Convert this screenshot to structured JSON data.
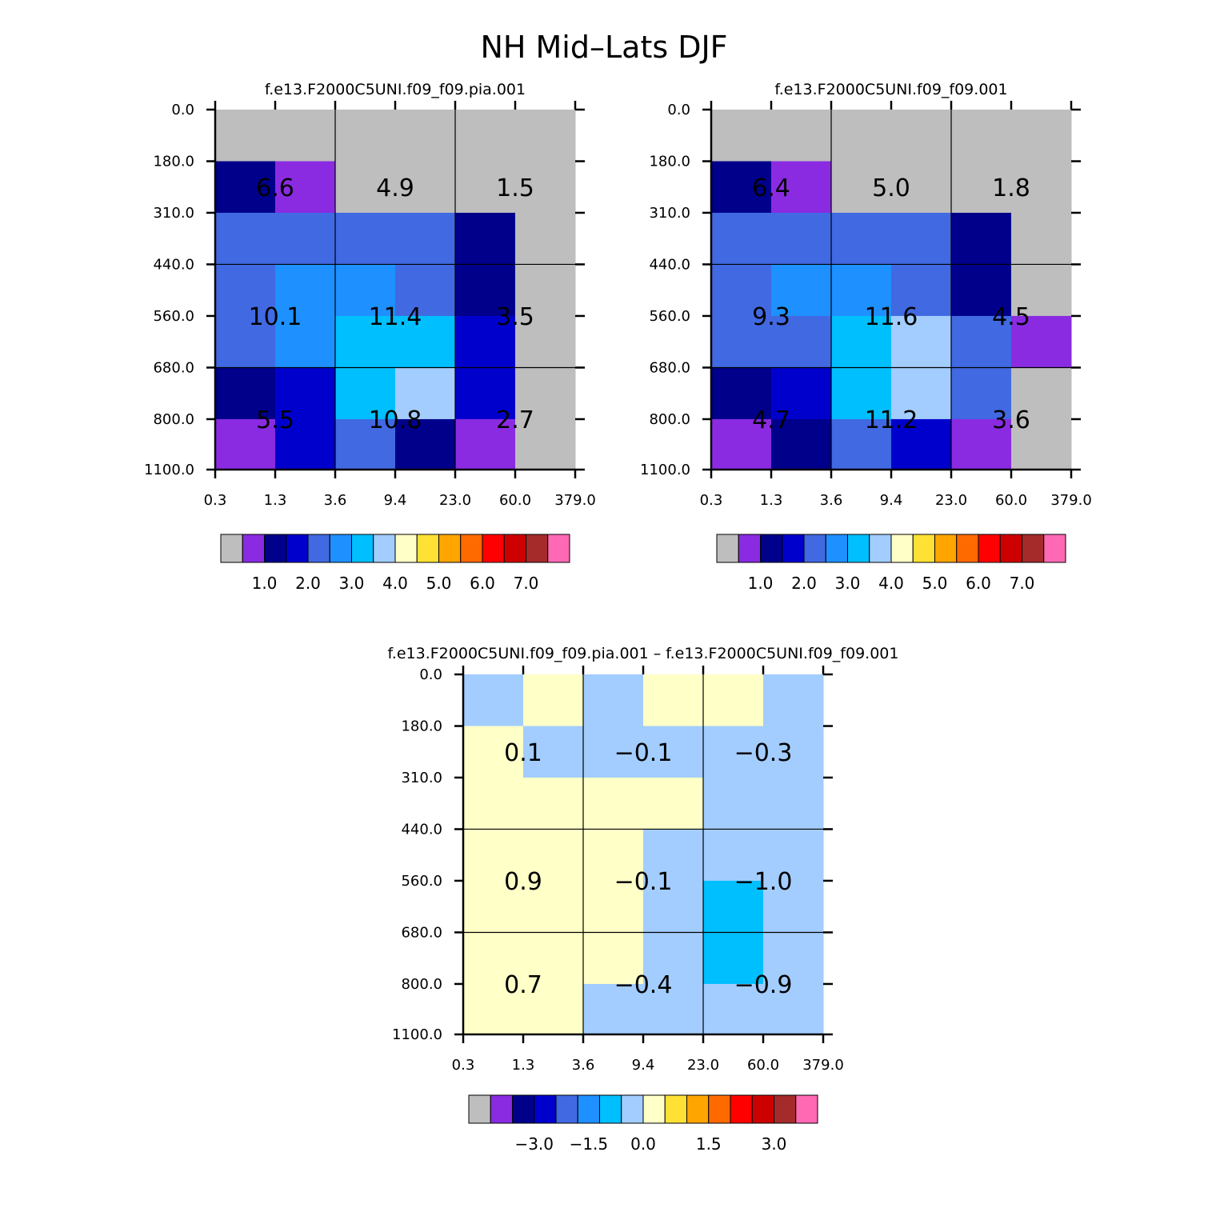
{
  "title": "NH Mid–Lats DJF",
  "chart_data": [
    {
      "type": "heatmap",
      "title": "f.e13.F2000C5UNI.f09_f09.pia.001",
      "x_ticks": [
        "0.3",
        "1.3",
        "3.6",
        "9.4",
        "23.0",
        "60.0",
        "379.0"
      ],
      "y_ticks": [
        "0.0",
        "180.0",
        "310.0",
        "440.0",
        "560.0",
        "680.0",
        "800.0",
        "1100.0"
      ],
      "cell_colors": [
        [
          "#bebebe",
          "#bebebe",
          "#bebebe",
          "#bebebe",
          "#bebebe",
          "#bebebe"
        ],
        [
          "#00008b",
          "#8a2be2",
          "#bebebe",
          "#bebebe",
          "#bebebe",
          "#bebebe"
        ],
        [
          "#4169e1",
          "#4169e1",
          "#4169e1",
          "#4169e1",
          "#00008b",
          "#bebebe"
        ],
        [
          "#4169e1",
          "#1e90ff",
          "#1e90ff",
          "#4169e1",
          "#00008b",
          "#bebebe"
        ],
        [
          "#4169e1",
          "#1e90ff",
          "#00bfff",
          "#00bfff",
          "#0000cd",
          "#bebebe"
        ],
        [
          "#00008b",
          "#0000cd",
          "#00bfff",
          "#a2cdfe",
          "#0000cd",
          "#bebebe"
        ],
        [
          "#8a2be2",
          "#0000cd",
          "#4169e1",
          "#00008b",
          "#8a2be2",
          "#bebebe"
        ]
      ],
      "block_labels": [
        [
          "6.6",
          "4.9",
          "1.5"
        ],
        [
          "10.1",
          "11.4",
          "3.5"
        ],
        [
          "5.5",
          "10.8",
          "2.7"
        ]
      ],
      "colorbar": {
        "colors": [
          "#bebebe",
          "#8a2be2",
          "#00008b",
          "#0000cd",
          "#4169e1",
          "#1e90ff",
          "#00bfff",
          "#a2cdfe",
          "#ffffc8",
          "#ffe135",
          "#ffa500",
          "#ff6a00",
          "#ff0000",
          "#cd0000",
          "#a52a2a",
          "#ff69b4"
        ],
        "labels": [
          "1.0",
          "2.0",
          "3.0",
          "4.0",
          "5.0",
          "6.0",
          "7.0"
        ]
      }
    },
    {
      "type": "heatmap",
      "title": "f.e13.F2000C5UNI.f09_f09.001",
      "x_ticks": [
        "0.3",
        "1.3",
        "3.6",
        "9.4",
        "23.0",
        "60.0",
        "379.0"
      ],
      "y_ticks": [
        "0.0",
        "180.0",
        "310.0",
        "440.0",
        "560.0",
        "680.0",
        "800.0",
        "1100.0"
      ],
      "cell_colors": [
        [
          "#bebebe",
          "#bebebe",
          "#bebebe",
          "#bebebe",
          "#bebebe",
          "#bebebe"
        ],
        [
          "#00008b",
          "#8a2be2",
          "#bebebe",
          "#bebebe",
          "#bebebe",
          "#bebebe"
        ],
        [
          "#4169e1",
          "#4169e1",
          "#4169e1",
          "#4169e1",
          "#00008b",
          "#bebebe"
        ],
        [
          "#4169e1",
          "#1e90ff",
          "#1e90ff",
          "#4169e1",
          "#00008b",
          "#bebebe"
        ],
        [
          "#4169e1",
          "#4169e1",
          "#00bfff",
          "#a2cdfe",
          "#4169e1",
          "#8a2be2"
        ],
        [
          "#00008b",
          "#0000cd",
          "#00bfff",
          "#a2cdfe",
          "#4169e1",
          "#bebebe"
        ],
        [
          "#8a2be2",
          "#00008b",
          "#4169e1",
          "#0000cd",
          "#8a2be2",
          "#bebebe"
        ]
      ],
      "block_labels": [
        [
          "6.4",
          "5.0",
          "1.8"
        ],
        [
          "9.3",
          "11.6",
          "4.5"
        ],
        [
          "4.7",
          "11.2",
          "3.6"
        ]
      ],
      "colorbar": {
        "colors": [
          "#bebebe",
          "#8a2be2",
          "#00008b",
          "#0000cd",
          "#4169e1",
          "#1e90ff",
          "#00bfff",
          "#a2cdfe",
          "#ffffc8",
          "#ffe135",
          "#ffa500",
          "#ff6a00",
          "#ff0000",
          "#cd0000",
          "#a52a2a",
          "#ff69b4"
        ],
        "labels": [
          "1.0",
          "2.0",
          "3.0",
          "4.0",
          "5.0",
          "6.0",
          "7.0"
        ]
      }
    },
    {
      "type": "heatmap",
      "title": "f.e13.F2000C5UNI.f09_f09.pia.001 – f.e13.F2000C5UNI.f09_f09.001",
      "x_ticks": [
        "0.3",
        "1.3",
        "3.6",
        "9.4",
        "23.0",
        "60.0",
        "379.0"
      ],
      "y_ticks": [
        "0.0",
        "180.0",
        "310.0",
        "440.0",
        "560.0",
        "680.0",
        "800.0",
        "1100.0"
      ],
      "cell_colors": [
        [
          "#a2cdfe",
          "#ffffc8",
          "#a2cdfe",
          "#ffffc8",
          "#ffffc8",
          "#a2cdfe"
        ],
        [
          "#ffffc8",
          "#a2cdfe",
          "#a2cdfe",
          "#a2cdfe",
          "#a2cdfe",
          "#a2cdfe"
        ],
        [
          "#ffffc8",
          "#ffffc8",
          "#ffffc8",
          "#ffffc8",
          "#a2cdfe",
          "#a2cdfe"
        ],
        [
          "#ffffc8",
          "#ffffc8",
          "#ffffc8",
          "#a2cdfe",
          "#a2cdfe",
          "#a2cdfe"
        ],
        [
          "#ffffc8",
          "#ffffc8",
          "#ffffc8",
          "#a2cdfe",
          "#00bfff",
          "#a2cdfe"
        ],
        [
          "#ffffc8",
          "#ffffc8",
          "#ffffc8",
          "#a2cdfe",
          "#00bfff",
          "#a2cdfe"
        ],
        [
          "#ffffc8",
          "#ffffc8",
          "#a2cdfe",
          "#a2cdfe",
          "#a2cdfe",
          "#a2cdfe"
        ]
      ],
      "block_labels": [
        [
          "0.1",
          "−0.1",
          "−0.3"
        ],
        [
          "0.9",
          "−0.1",
          "−1.0"
        ],
        [
          "0.7",
          "−0.4",
          "−0.9"
        ]
      ],
      "colorbar": {
        "colors": [
          "#bebebe",
          "#8a2be2",
          "#00008b",
          "#0000cd",
          "#4169e1",
          "#1e90ff",
          "#00bfff",
          "#a2cdfe",
          "#ffffc8",
          "#ffe135",
          "#ffa500",
          "#ff6a00",
          "#ff0000",
          "#cd0000",
          "#a52a2a",
          "#ff69b4"
        ],
        "labels": [
          "−3.0",
          "−1.5",
          "0.0",
          "1.5",
          "3.0"
        ]
      }
    }
  ]
}
